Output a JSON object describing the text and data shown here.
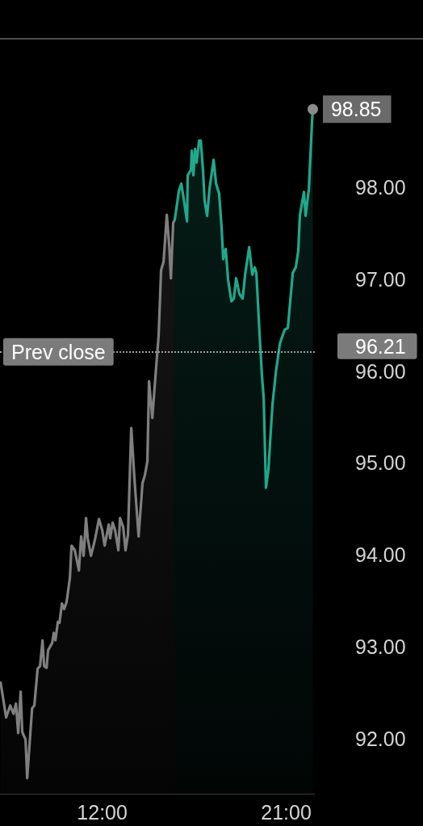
{
  "chart_data": {
    "type": "area",
    "xlim": [
      7,
      22.4
    ],
    "xticks": [
      {
        "value": 12,
        "label": "12:00"
      },
      {
        "value": 21,
        "label": "21:00"
      }
    ],
    "ylim": [
      91.4,
      99.6
    ],
    "yticks": [
      {
        "value": 92,
        "label": "92.00"
      },
      {
        "value": 93,
        "label": "93.00"
      },
      {
        "value": 94,
        "label": "94.00"
      },
      {
        "value": 95,
        "label": "95.00"
      },
      {
        "value": 96,
        "label": "96.00"
      },
      {
        "value": 97,
        "label": "97.00"
      },
      {
        "value": 98,
        "label": "98.00"
      }
    ],
    "grid": false,
    "marker": "none",
    "line_style": "solid",
    "series": [
      {
        "color": "#7f7f7f",
        "x": [
          7.03,
          7.3,
          7.5,
          7.66,
          7.78,
          7.89,
          8.01,
          8.09,
          8.25,
          8.33,
          8.57,
          8.68,
          8.84,
          8.96,
          9.08,
          9.16,
          9.28,
          9.35,
          9.55,
          9.63,
          9.71,
          9.83,
          9.91,
          10.03,
          10.14,
          10.26,
          10.42,
          10.5,
          10.66,
          10.86,
          10.97,
          11.09,
          11.21,
          11.29,
          11.45,
          11.64,
          11.84,
          12.0,
          12.12,
          12.32,
          12.39,
          12.51,
          12.63,
          12.79,
          12.87,
          13.03,
          13.14,
          13.26,
          13.42,
          13.58,
          13.78,
          13.97,
          14.09,
          14.21,
          14.29,
          14.45,
          14.61,
          14.76,
          14.88,
          15.0,
          15.16,
          15.28,
          15.36,
          15.47,
          15.55
        ],
        "values": [
          92.61,
          92.23,
          92.36,
          92.27,
          92.38,
          92.06,
          92.51,
          92.07,
          91.99,
          91.57,
          92.33,
          92.36,
          92.76,
          92.79,
          93.07,
          92.79,
          92.77,
          92.96,
          93.04,
          93.15,
          93.07,
          93.27,
          93.26,
          93.47,
          93.41,
          93.49,
          93.75,
          94.1,
          94.05,
          93.83,
          94.2,
          93.99,
          94.4,
          94.18,
          93.99,
          94.16,
          94.39,
          94.27,
          94.1,
          94.33,
          94.18,
          94.35,
          94.27,
          94.05,
          94.4,
          94.3,
          94.05,
          94.22,
          95.38,
          94.82,
          94.2,
          94.78,
          94.87,
          95.02,
          95.89,
          95.49,
          95.96,
          96.39,
          97.1,
          97.19,
          97.7,
          97.36,
          97.01,
          97.61,
          97.65
        ]
      },
      {
        "color": "#1fa98b",
        "x": [
          15.55,
          15.75,
          15.87,
          15.99,
          16.15,
          16.18,
          16.34,
          16.38,
          16.46,
          16.54,
          16.62,
          16.74,
          16.82,
          16.93,
          17.01,
          17.13,
          17.25,
          17.45,
          17.57,
          17.72,
          17.84,
          17.92,
          18.04,
          18.16,
          18.32,
          18.44,
          18.55,
          18.71,
          18.87,
          18.99,
          19.19,
          19.34,
          19.46,
          19.54,
          19.7,
          19.82,
          19.9,
          20.01,
          20.13,
          20.25,
          20.33,
          20.49,
          20.69,
          20.92,
          21.08,
          21.32,
          21.47,
          21.59,
          21.67,
          21.87,
          21.95,
          22.11,
          22.26,
          22.3
        ],
        "values": [
          97.65,
          97.96,
          98.04,
          97.87,
          97.63,
          98.13,
          98.19,
          98.4,
          98.13,
          98.42,
          98.27,
          98.51,
          98.51,
          98.19,
          97.85,
          97.69,
          97.99,
          98.3,
          98.04,
          97.93,
          97.56,
          97.22,
          97.33,
          96.99,
          96.76,
          96.79,
          97.01,
          96.84,
          96.79,
          97.05,
          97.35,
          97.05,
          97.13,
          97.07,
          96.39,
          95.93,
          95.7,
          94.73,
          94.93,
          95.36,
          95.64,
          95.98,
          96.3,
          96.45,
          96.47,
          97.07,
          97.13,
          97.31,
          97.7,
          97.95,
          97.69,
          97.99,
          98.7,
          98.85
        ],
        "value_labels": [
          null,
          null,
          null,
          null,
          null,
          null,
          null,
          null,
          null,
          null,
          null,
          null,
          null,
          null,
          null,
          null,
          null,
          null,
          null,
          null,
          null,
          null,
          null,
          null,
          null,
          null,
          null,
          null,
          null,
          null,
          null,
          null,
          null,
          null,
          null,
          null,
          null,
          null,
          null,
          null,
          null,
          null,
          null,
          null,
          null,
          null,
          null,
          null,
          null,
          null,
          null,
          null,
          null,
          "98.85"
        ]
      }
    ],
    "ref_lines": [
      {
        "axis": "y",
        "value": 96.21,
        "label": "Prev close",
        "color": "#a0a0a0",
        "line_style": "dotted"
      }
    ],
    "annotations": [
      "96.21"
    ]
  }
}
